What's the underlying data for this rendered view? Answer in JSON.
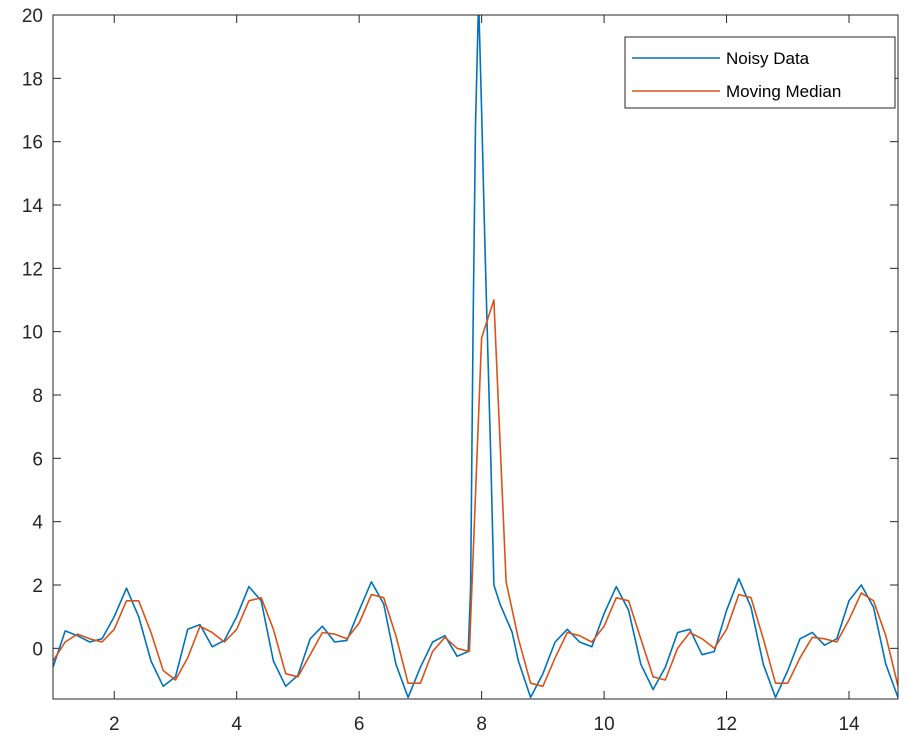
{
  "chart_data": {
    "type": "line",
    "title": "",
    "xlabel": "",
    "ylabel": "",
    "xlim": [
      1,
      14.8
    ],
    "ylim": [
      -1.6,
      20
    ],
    "x_ticks": [
      2,
      4,
      6,
      8,
      10,
      12,
      14
    ],
    "y_ticks": [
      0,
      2,
      4,
      6,
      8,
      10,
      12,
      14,
      16,
      18,
      20
    ],
    "grid": false,
    "legend_position": "top-right",
    "series": [
      {
        "name": "Noisy Data",
        "color": "#0072BD",
        "points": [
          [
            1.0,
            -0.6
          ],
          [
            1.2,
            0.55
          ],
          [
            1.4,
            0.4
          ],
          [
            1.6,
            0.2
          ],
          [
            1.8,
            0.3
          ],
          [
            2.0,
            1.0
          ],
          [
            2.2,
            1.9
          ],
          [
            2.4,
            1.0
          ],
          [
            2.6,
            -0.4
          ],
          [
            2.8,
            -1.2
          ],
          [
            3.0,
            -0.9
          ],
          [
            3.2,
            0.6
          ],
          [
            3.4,
            0.75
          ],
          [
            3.6,
            0.05
          ],
          [
            3.8,
            0.25
          ],
          [
            4.0,
            1.0
          ],
          [
            4.2,
            1.95
          ],
          [
            4.4,
            1.5
          ],
          [
            4.6,
            -0.4
          ],
          [
            4.8,
            -1.2
          ],
          [
            5.0,
            -0.85
          ],
          [
            5.2,
            0.3
          ],
          [
            5.4,
            0.7
          ],
          [
            5.6,
            0.2
          ],
          [
            5.8,
            0.25
          ],
          [
            6.0,
            1.2
          ],
          [
            6.2,
            2.1
          ],
          [
            6.4,
            1.4
          ],
          [
            6.6,
            -0.5
          ],
          [
            6.8,
            -1.55
          ],
          [
            7.0,
            -0.6
          ],
          [
            7.2,
            0.2
          ],
          [
            7.4,
            0.4
          ],
          [
            7.6,
            -0.25
          ],
          [
            7.78,
            -0.1
          ],
          [
            7.82,
            1.9
          ],
          [
            7.86,
            10.2
          ],
          [
            7.9,
            16.5
          ],
          [
            7.95,
            20.5
          ],
          [
            8.0,
            17.0
          ],
          [
            8.05,
            13.0
          ],
          [
            8.1,
            9.5
          ],
          [
            8.15,
            6.0
          ],
          [
            8.2,
            2.0
          ],
          [
            8.3,
            1.4
          ],
          [
            8.5,
            0.5
          ],
          [
            8.6,
            -0.4
          ],
          [
            8.8,
            -1.55
          ],
          [
            9.0,
            -0.8
          ],
          [
            9.2,
            0.2
          ],
          [
            9.4,
            0.6
          ],
          [
            9.6,
            0.2
          ],
          [
            9.8,
            0.05
          ],
          [
            10.0,
            1.1
          ],
          [
            10.2,
            1.95
          ],
          [
            10.4,
            1.2
          ],
          [
            10.6,
            -0.5
          ],
          [
            10.8,
            -1.3
          ],
          [
            11.0,
            -0.6
          ],
          [
            11.2,
            0.5
          ],
          [
            11.4,
            0.6
          ],
          [
            11.6,
            -0.2
          ],
          [
            11.8,
            -0.1
          ],
          [
            12.0,
            1.2
          ],
          [
            12.2,
            2.2
          ],
          [
            12.4,
            1.3
          ],
          [
            12.6,
            -0.5
          ],
          [
            12.8,
            -1.55
          ],
          [
            13.0,
            -0.7
          ],
          [
            13.2,
            0.3
          ],
          [
            13.4,
            0.5
          ],
          [
            13.6,
            0.1
          ],
          [
            13.8,
            0.3
          ],
          [
            14.0,
            1.5
          ],
          [
            14.2,
            2.0
          ],
          [
            14.4,
            1.3
          ],
          [
            14.6,
            -0.5
          ],
          [
            14.8,
            -1.55
          ]
        ]
      },
      {
        "name": "Moving Median",
        "color": "#D95319",
        "points": [
          [
            1.0,
            -0.4
          ],
          [
            1.2,
            0.2
          ],
          [
            1.4,
            0.45
          ],
          [
            1.6,
            0.3
          ],
          [
            1.8,
            0.2
          ],
          [
            2.0,
            0.6
          ],
          [
            2.2,
            1.5
          ],
          [
            2.4,
            1.5
          ],
          [
            2.6,
            0.5
          ],
          [
            2.8,
            -0.7
          ],
          [
            3.0,
            -1.0
          ],
          [
            3.2,
            -0.3
          ],
          [
            3.4,
            0.7
          ],
          [
            3.6,
            0.5
          ],
          [
            3.8,
            0.2
          ],
          [
            4.0,
            0.6
          ],
          [
            4.2,
            1.5
          ],
          [
            4.4,
            1.6
          ],
          [
            4.6,
            0.6
          ],
          [
            4.8,
            -0.8
          ],
          [
            5.0,
            -0.9
          ],
          [
            5.2,
            -0.2
          ],
          [
            5.4,
            0.5
          ],
          [
            5.6,
            0.45
          ],
          [
            5.8,
            0.3
          ],
          [
            6.0,
            0.8
          ],
          [
            6.2,
            1.7
          ],
          [
            6.4,
            1.6
          ],
          [
            6.6,
            0.4
          ],
          [
            6.8,
            -1.1
          ],
          [
            7.0,
            -1.1
          ],
          [
            7.2,
            -0.1
          ],
          [
            7.4,
            0.35
          ],
          [
            7.6,
            0.0
          ],
          [
            7.8,
            -0.1
          ],
          [
            8.0,
            9.8
          ],
          [
            8.1,
            10.4
          ],
          [
            8.2,
            11.0
          ],
          [
            8.4,
            2.1
          ],
          [
            8.6,
            0.3
          ],
          [
            8.8,
            -1.1
          ],
          [
            9.0,
            -1.2
          ],
          [
            9.2,
            -0.3
          ],
          [
            9.4,
            0.5
          ],
          [
            9.6,
            0.4
          ],
          [
            9.8,
            0.2
          ],
          [
            10.0,
            0.7
          ],
          [
            10.2,
            1.6
          ],
          [
            10.4,
            1.5
          ],
          [
            10.6,
            0.3
          ],
          [
            10.8,
            -0.9
          ],
          [
            11.0,
            -1.0
          ],
          [
            11.2,
            0.0
          ],
          [
            11.4,
            0.5
          ],
          [
            11.6,
            0.3
          ],
          [
            11.8,
            0.0
          ],
          [
            12.0,
            0.6
          ],
          [
            12.2,
            1.7
          ],
          [
            12.4,
            1.6
          ],
          [
            12.6,
            0.3
          ],
          [
            12.8,
            -1.1
          ],
          [
            13.0,
            -1.1
          ],
          [
            13.2,
            -0.3
          ],
          [
            13.4,
            0.35
          ],
          [
            13.6,
            0.3
          ],
          [
            13.8,
            0.2
          ],
          [
            14.0,
            0.9
          ],
          [
            14.2,
            1.75
          ],
          [
            14.4,
            1.5
          ],
          [
            14.6,
            0.4
          ],
          [
            14.8,
            -1.2
          ]
        ]
      }
    ]
  }
}
